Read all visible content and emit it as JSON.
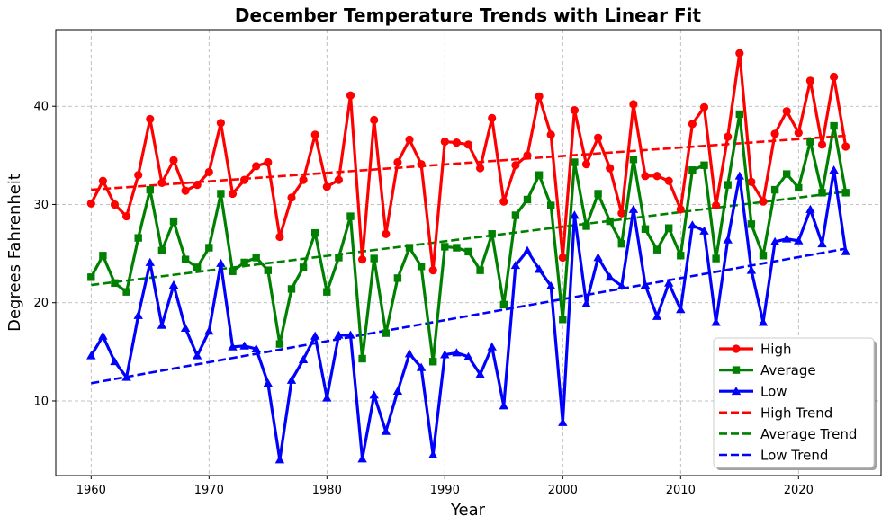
{
  "chart_data": {
    "type": "line",
    "title": "December Temperature Trends with Linear Fit",
    "xlabel": "Year",
    "ylabel": "Degrees Fahrenheit",
    "xlim": [
      1957,
      2027
    ],
    "ylim": [
      2.4,
      47.8
    ],
    "x_ticks": [
      1960,
      1970,
      1980,
      1990,
      2000,
      2010,
      2020
    ],
    "y_ticks": [
      10,
      20,
      30,
      40
    ],
    "grid": true,
    "legend_position": "lower-right",
    "x": [
      1960,
      1961,
      1962,
      1963,
      1964,
      1965,
      1966,
      1967,
      1968,
      1969,
      1970,
      1971,
      1972,
      1973,
      1974,
      1975,
      1976,
      1977,
      1978,
      1979,
      1980,
      1981,
      1982,
      1983,
      1984,
      1985,
      1986,
      1987,
      1988,
      1989,
      1990,
      1991,
      1992,
      1993,
      1994,
      1995,
      1996,
      1997,
      1998,
      1999,
      2000,
      2001,
      2002,
      2003,
      2004,
      2005,
      2006,
      2007,
      2008,
      2009,
      2010,
      2011,
      2012,
      2013,
      2014,
      2015,
      2016,
      2017,
      2018,
      2019,
      2020,
      2021,
      2022,
      2023,
      2024
    ],
    "series": [
      {
        "name": "High",
        "color": "#ff0000",
        "marker": "circle",
        "values": [
          30.1,
          32.4,
          30.0,
          28.8,
          33.0,
          38.7,
          32.2,
          34.5,
          31.4,
          32.0,
          33.3,
          38.3,
          31.1,
          32.5,
          33.9,
          34.3,
          26.7,
          30.7,
          32.5,
          37.1,
          31.8,
          32.5,
          41.1,
          24.4,
          38.6,
          27.0,
          34.3,
          36.6,
          34.1,
          23.3,
          36.4,
          36.3,
          36.1,
          33.7,
          38.8,
          30.3,
          34.0,
          35.0,
          41.0,
          37.1,
          24.6,
          39.6,
          34.1,
          36.8,
          33.7,
          29.1,
          40.2,
          32.9,
          32.9,
          32.4,
          29.5,
          38.2,
          39.9,
          29.9,
          36.9,
          45.4,
          32.3,
          30.3,
          37.2,
          39.5,
          37.3,
          42.6,
          36.1,
          43.0,
          35.9
        ]
      },
      {
        "name": "Average",
        "color": "#008000",
        "marker": "square",
        "values": [
          22.6,
          24.8,
          22.0,
          21.1,
          26.6,
          31.5,
          25.3,
          28.3,
          24.4,
          23.6,
          25.6,
          31.1,
          23.2,
          24.1,
          24.6,
          23.3,
          15.8,
          21.4,
          23.6,
          27.1,
          21.1,
          24.6,
          28.8,
          14.3,
          24.5,
          16.9,
          22.5,
          25.6,
          23.7,
          14.0,
          25.7,
          25.6,
          25.2,
          23.3,
          27.0,
          19.8,
          28.9,
          30.5,
          33.0,
          29.9,
          18.3,
          34.3,
          27.8,
          31.1,
          28.3,
          26.0,
          34.6,
          27.5,
          25.4,
          27.6,
          24.8,
          33.5,
          34.0,
          24.5,
          32.0,
          39.2,
          28.0,
          24.8,
          31.5,
          33.1,
          31.7,
          36.4,
          31.2,
          38.0,
          31.2
        ]
      },
      {
        "name": "Low",
        "color": "#0000ff",
        "marker": "triangle",
        "values": [
          14.6,
          16.6,
          14.0,
          12.4,
          18.7,
          24.1,
          17.7,
          21.8,
          17.4,
          14.6,
          17.1,
          24.0,
          15.5,
          15.6,
          15.3,
          11.8,
          4.0,
          12.1,
          14.2,
          16.6,
          10.3,
          16.7,
          16.7,
          4.1,
          10.6,
          6.9,
          11.0,
          14.8,
          13.4,
          4.5,
          14.7,
          14.9,
          14.5,
          12.7,
          15.5,
          9.5,
          23.8,
          25.3,
          23.4,
          21.7,
          7.8,
          28.9,
          19.9,
          24.6,
          22.6,
          21.7,
          29.5,
          21.8,
          18.6,
          22.0,
          19.3,
          27.9,
          27.3,
          18.0,
          26.4,
          32.9,
          23.3,
          18.0,
          26.2,
          26.5,
          26.3,
          29.5,
          26.0,
          33.5,
          25.2
        ]
      }
    ],
    "trend_lines": [
      {
        "name": "High Trend",
        "color": "#ff0000",
        "x": [
          1960,
          2024
        ],
        "values": [
          31.5,
          37.0
        ]
      },
      {
        "name": "Average Trend",
        "color": "#008000",
        "x": [
          1960,
          2024
        ],
        "values": [
          21.8,
          31.3
        ]
      },
      {
        "name": "Low Trend",
        "color": "#0000ff",
        "x": [
          1960,
          2024
        ],
        "values": [
          11.8,
          25.5
        ]
      }
    ]
  }
}
